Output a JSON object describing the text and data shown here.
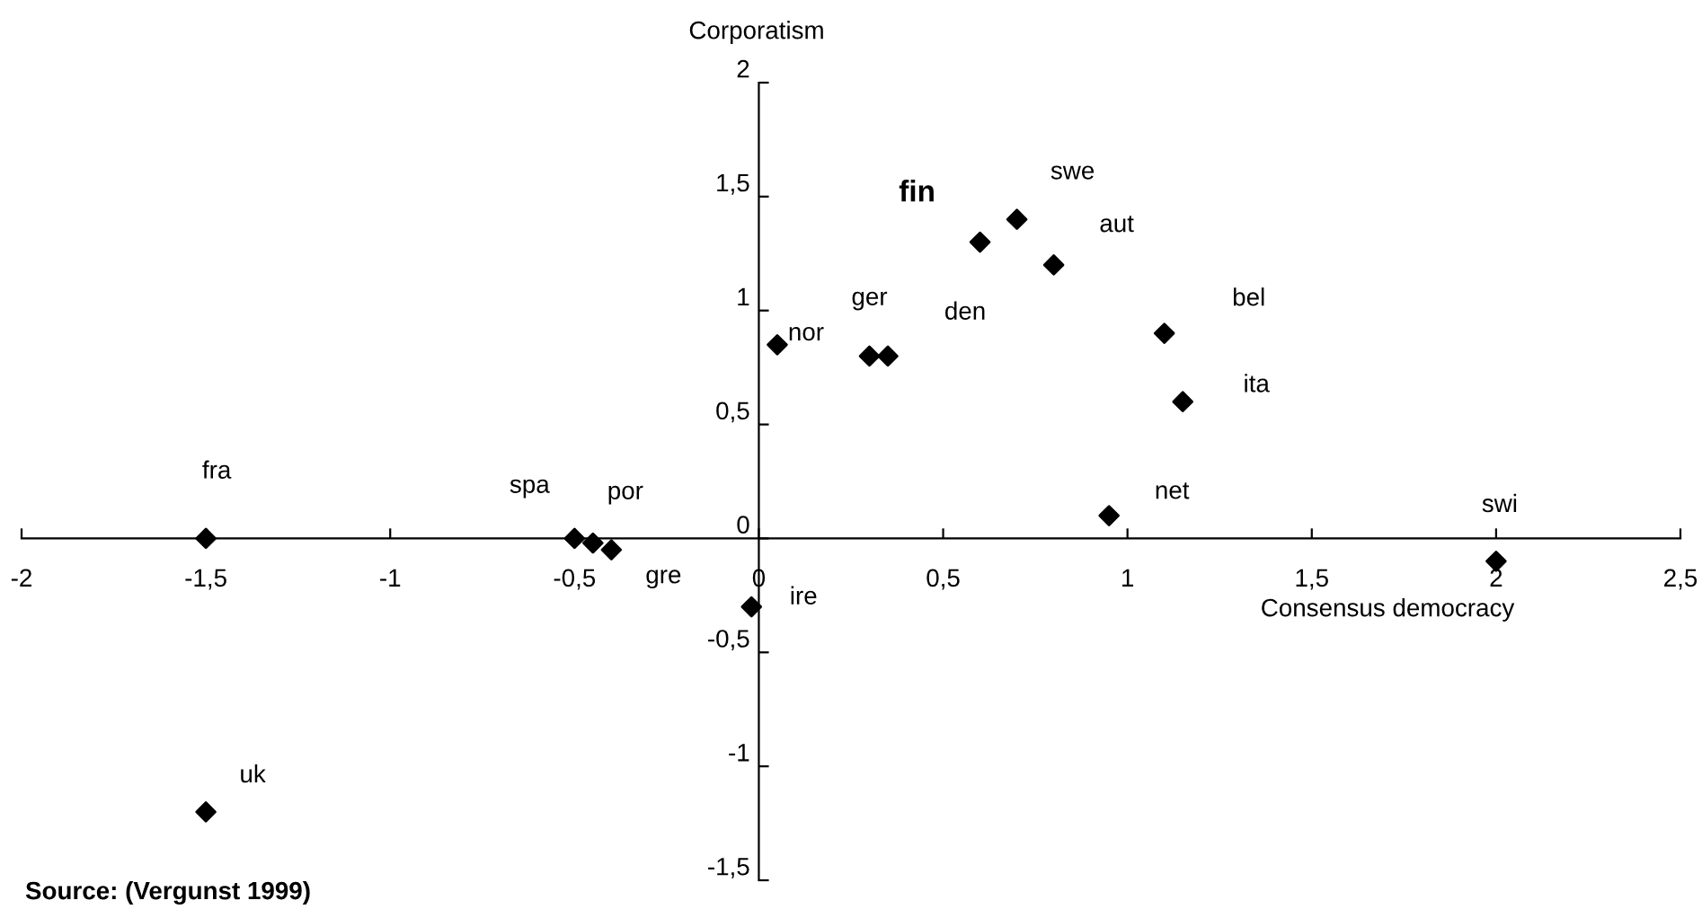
{
  "chart_data": {
    "type": "scatter",
    "xlabel": "Consensus democracy",
    "ylabel": "Corporatism",
    "xlim": [
      -2,
      2.5
    ],
    "ylim": [
      -1.5,
      2
    ],
    "xticks": [
      {
        "value": -2,
        "label": "-2"
      },
      {
        "value": -1.5,
        "label": "-1,5"
      },
      {
        "value": -1,
        "label": "-1"
      },
      {
        "value": -0.5,
        "label": "-0,5"
      },
      {
        "value": 0,
        "label": "0"
      },
      {
        "value": 0.5,
        "label": "0,5"
      },
      {
        "value": 1,
        "label": "1"
      },
      {
        "value": 1.5,
        "label": "1,5"
      },
      {
        "value": 2,
        "label": "2"
      },
      {
        "value": 2.5,
        "label": "2,5"
      }
    ],
    "yticks": [
      {
        "value": -1.5,
        "label": "-1,5"
      },
      {
        "value": -1,
        "label": "-1"
      },
      {
        "value": -0.5,
        "label": "-0,5"
      },
      {
        "value": 0,
        "label": "0"
      },
      {
        "value": 0.5,
        "label": "0,5"
      },
      {
        "value": 1,
        "label": "1"
      },
      {
        "value": 1.5,
        "label": "1,5"
      },
      {
        "value": 2,
        "label": "2"
      }
    ],
    "marker": "diamond",
    "grid": false,
    "legend": false,
    "series": [
      {
        "color": "#000000",
        "x": [
          -1.5,
          -1.5,
          -0.5,
          -0.45,
          -0.4,
          -0.02,
          0.05,
          0.3,
          0.35,
          0.6,
          0.7,
          0.8,
          1.1,
          1.15,
          0.95,
          2.0
        ],
        "values": [
          0,
          -1.2,
          0,
          -0.02,
          -0.05,
          -0.3,
          0.85,
          0.8,
          0.8,
          1.3,
          1.4,
          1.2,
          0.9,
          0.6,
          0.1,
          -0.1
        ]
      }
    ],
    "annotations": [
      {
        "text": "fra",
        "x": -1.5,
        "y": 0
      },
      {
        "text": "uk",
        "x": -1.5,
        "y": -1.2
      },
      {
        "text": "spa",
        "x": -0.5,
        "y": 0
      },
      {
        "text": "por",
        "x": -0.45,
        "y": -0.02
      },
      {
        "text": "gre",
        "x": -0.4,
        "y": -0.05
      },
      {
        "text": "ire",
        "x": -0.02,
        "y": -0.3
      },
      {
        "text": "nor",
        "x": 0.05,
        "y": 0.85
      },
      {
        "text": "ger",
        "x": 0.3,
        "y": 0.8
      },
      {
        "text": "den",
        "x": 0.35,
        "y": 0.8
      },
      {
        "text": "fin",
        "x": 0.6,
        "y": 1.3
      },
      {
        "text": "swe",
        "x": 0.7,
        "y": 1.4
      },
      {
        "text": "aut",
        "x": 0.8,
        "y": 1.2
      },
      {
        "text": "bel",
        "x": 1.1,
        "y": 0.9
      },
      {
        "text": "ita",
        "x": 1.15,
        "y": 0.6
      },
      {
        "text": "net",
        "x": 0.95,
        "y": 0.1
      },
      {
        "text": "swi",
        "x": 2.0,
        "y": -0.1
      },
      "Source: (Vergunst 1999)"
    ]
  }
}
